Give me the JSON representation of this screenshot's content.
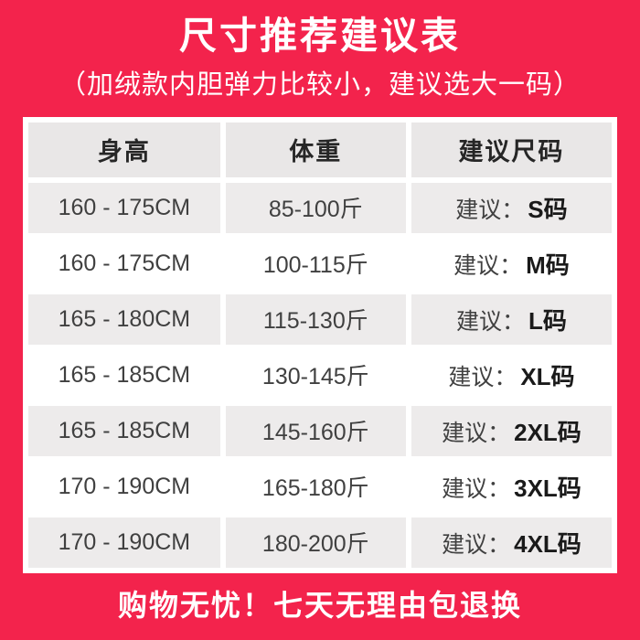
{
  "page": {
    "background_color": "#f3234c",
    "title": "尺寸推荐建议表",
    "subtitle": "（加绒款内胆弹力比较小，建议选大一码）",
    "footer": "购物无忧！七天无理由包退换"
  },
  "table": {
    "header_bg": "#e9e7e7",
    "zebra_bg": "#edebeb",
    "columns": [
      "身高",
      "体重",
      "建议尺码"
    ],
    "advice_label": "建议：",
    "rows": [
      {
        "height": "160 - 175CM",
        "weight": "85-100斤",
        "size": "S码"
      },
      {
        "height": "160 - 175CM",
        "weight": "100-115斤",
        "size": "M码"
      },
      {
        "height": "165 - 180CM",
        "weight": "115-130斤",
        "size": "L码"
      },
      {
        "height": "165 - 185CM",
        "weight": "130-145斤",
        "size": "XL码"
      },
      {
        "height": "165 - 185CM",
        "weight": "145-160斤",
        "size": "2XL码"
      },
      {
        "height": "170 - 190CM",
        "weight": "165-180斤",
        "size": "3XL码"
      },
      {
        "height": "170 - 190CM",
        "weight": "180-200斤",
        "size": "4XL码"
      }
    ]
  },
  "chart_data": {
    "type": "table",
    "title": "尺寸推荐建议表",
    "subtitle": "（加绒款内胆弹力比较小，建议选大一码）",
    "columns": [
      "身高",
      "体重",
      "建议尺码"
    ],
    "rows": [
      [
        "160 - 175CM",
        "85-100斤",
        "建议：S码"
      ],
      [
        "160 - 175CM",
        "100-115斤",
        "建议：M码"
      ],
      [
        "165 - 180CM",
        "115-130斤",
        "建议：L码"
      ],
      [
        "165 - 185CM",
        "130-145斤",
        "建议：XL码"
      ],
      [
        "165 - 185CM",
        "145-160斤",
        "建议：2XL码"
      ],
      [
        "170 - 190CM",
        "165-180斤",
        "建议：3XL码"
      ],
      [
        "170 - 190CM",
        "180-200斤",
        "建议：4XL码"
      ]
    ],
    "footnote": "购物无忧！七天无理由包退换"
  }
}
